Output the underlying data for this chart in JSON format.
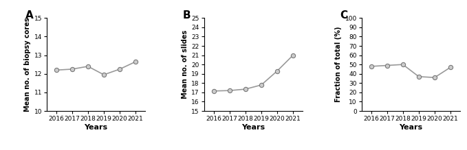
{
  "years": [
    2016,
    2017,
    2018,
    2019,
    2020,
    2021
  ],
  "panel_A": {
    "label": "A",
    "values": [
      12.2,
      12.25,
      12.4,
      11.95,
      12.25,
      12.65
    ],
    "ylabel": "Mean no. of biopsy cores",
    "ylim": [
      10,
      15
    ],
    "yticks": [
      10,
      11,
      12,
      13,
      14,
      15
    ]
  },
  "panel_B": {
    "label": "B",
    "values": [
      17.15,
      17.2,
      17.35,
      17.8,
      19.3,
      21.0
    ],
    "ylabel": "Mean no. of slides",
    "ylim": [
      15,
      25
    ],
    "yticks": [
      15,
      16,
      17,
      18,
      19,
      20,
      21,
      22,
      23,
      24,
      25
    ]
  },
  "panel_C": {
    "label": "C",
    "values": [
      48.0,
      49.0,
      50.0,
      37.0,
      36.0,
      47.0
    ],
    "ylabel": "Fraction of total (%)",
    "ylim": [
      0,
      100
    ],
    "yticks": [
      0,
      10,
      20,
      30,
      40,
      50,
      60,
      70,
      80,
      90,
      100
    ]
  },
  "xlabel": "Years",
  "line_color": "#999999",
  "marker_facecolor": "#cccccc",
  "marker_edge_color": "#777777",
  "marker_style": "o",
  "marker_size": 4.5,
  "line_width": 1.2,
  "tick_label_fontsize": 6.5,
  "axis_label_fontsize": 7,
  "xlabel_fontsize": 8,
  "panel_label_fontsize": 11
}
